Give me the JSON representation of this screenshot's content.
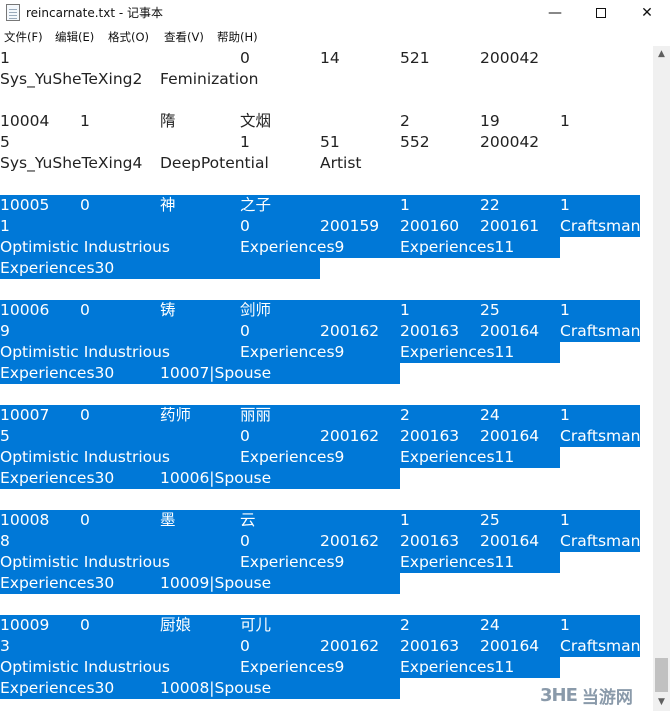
{
  "window": {
    "title": "reincarnate.txt - 记事本",
    "min_glyph": "—",
    "close_glyph": "✕"
  },
  "menu": [
    "文件(F)",
    "编辑(E)",
    "格式(O)",
    "查看(V)",
    "帮助(H)"
  ],
  "lines": [
    {
      "selected": false,
      "cells": [
        "1",
        "",
        "",
        "0",
        "14",
        "521",
        "200042",
        ""
      ]
    },
    {
      "selected": false,
      "cells": [
        "Sys_YuSheTeXing2",
        "",
        "Feminization",
        "",
        "",
        "",
        "",
        ""
      ]
    },
    {
      "selected": false,
      "cells": [
        "",
        "",
        "",
        "",
        "",
        "",
        "",
        ""
      ]
    },
    {
      "selected": false,
      "cells": [
        "10004",
        "1",
        "隋",
        "文烟",
        "",
        "2",
        "19",
        "1"
      ]
    },
    {
      "selected": false,
      "cells": [
        "5",
        "",
        "",
        "1",
        "51",
        "552",
        "200042",
        ""
      ]
    },
    {
      "selected": false,
      "cells": [
        "Sys_YuSheTeXing4",
        "",
        "DeepPotential",
        "",
        "Artist",
        "",
        "",
        ""
      ]
    },
    {
      "selected": true,
      "cells": [
        "",
        "",
        "",
        "",
        "",
        "",
        "",
        ""
      ]
    },
    {
      "selected": true,
      "cells": [
        "10005",
        "0",
        "神",
        "之子",
        "",
        "1",
        "22",
        "1"
      ]
    },
    {
      "selected": true,
      "cells": [
        "1",
        "",
        "",
        "0",
        "200159",
        "200160",
        "200161",
        "Craftsman"
      ]
    },
    {
      "selected": true,
      "cells": [
        "Optimistic Industrious",
        "",
        "",
        "Experiences9",
        "",
        "Experiences11",
        "",
        ""
      ]
    },
    {
      "selected": true,
      "cells": [
        "Experiences30",
        "",
        "",
        "",
        "",
        "",
        "",
        ""
      ]
    },
    {
      "selected": false,
      "cells": [
        "",
        "",
        "",
        "",
        "",
        "",
        "",
        ""
      ]
    },
    {
      "selected": true,
      "cells": [
        "10006",
        "0",
        "铸",
        "剑师",
        "",
        "1",
        "25",
        "1"
      ]
    },
    {
      "selected": true,
      "cells": [
        "9",
        "",
        "",
        "0",
        "200162",
        "200163",
        "200164",
        "Craftsman"
      ]
    },
    {
      "selected": true,
      "cells": [
        "Optimistic Industrious",
        "",
        "",
        "Experiences9",
        "",
        "Experiences11",
        "",
        ""
      ]
    },
    {
      "selected": true,
      "cells": [
        "Experiences30",
        "",
        "10007|Spouse",
        "",
        "",
        "",
        "",
        ""
      ]
    },
    {
      "selected": false,
      "cells": [
        "",
        "",
        "",
        "",
        "",
        "",
        "",
        ""
      ]
    },
    {
      "selected": true,
      "cells": [
        "10007",
        "0",
        "药师",
        "丽丽",
        "",
        "2",
        "24",
        "1"
      ]
    },
    {
      "selected": true,
      "cells": [
        "5",
        "",
        "",
        "0",
        "200162",
        "200163",
        "200164",
        "Craftsman"
      ]
    },
    {
      "selected": true,
      "cells": [
        "Optimistic Industrious",
        "",
        "",
        "Experiences9",
        "",
        "Experiences11",
        "",
        ""
      ]
    },
    {
      "selected": true,
      "cells": [
        "Experiences30",
        "",
        "10006|Spouse",
        "",
        "",
        "",
        "",
        ""
      ]
    },
    {
      "selected": false,
      "cells": [
        "",
        "",
        "",
        "",
        "",
        "",
        "",
        ""
      ]
    },
    {
      "selected": true,
      "cells": [
        "10008",
        "0",
        "墨",
        "云",
        "",
        "1",
        "25",
        "1"
      ]
    },
    {
      "selected": true,
      "cells": [
        "8",
        "",
        "",
        "0",
        "200162",
        "200163",
        "200164",
        "Craftsman"
      ]
    },
    {
      "selected": true,
      "cells": [
        "Optimistic Industrious",
        "",
        "",
        "Experiences9",
        "",
        "Experiences11",
        "",
        ""
      ]
    },
    {
      "selected": true,
      "cells": [
        "Experiences30",
        "",
        "10009|Spouse",
        "",
        "",
        "",
        "",
        ""
      ]
    },
    {
      "selected": false,
      "cells": [
        "",
        "",
        "",
        "",
        "",
        "",
        "",
        ""
      ]
    },
    {
      "selected": true,
      "cells": [
        "10009",
        "0",
        "厨娘",
        "可儿",
        "",
        "2",
        "24",
        "1"
      ]
    },
    {
      "selected": true,
      "cells": [
        "3",
        "",
        "",
        "0",
        "200162",
        "200163",
        "200164",
        "Craftsman"
      ]
    },
    {
      "selected": true,
      "cells": [
        "Optimistic Industrious",
        "",
        "",
        "Experiences9",
        "",
        "Experiences11",
        "",
        ""
      ]
    },
    {
      "selected": true,
      "cells": [
        "Experiences30",
        "",
        "10008|Spouse",
        "",
        "",
        "",
        "",
        ""
      ]
    }
  ],
  "scrollbar": {
    "up_glyph": "▲",
    "down_glyph": "▼"
  },
  "watermark": {
    "logo": "3HE",
    "text": "当游网"
  },
  "colors": {
    "selection": "#0078d7",
    "text": "#222222"
  }
}
